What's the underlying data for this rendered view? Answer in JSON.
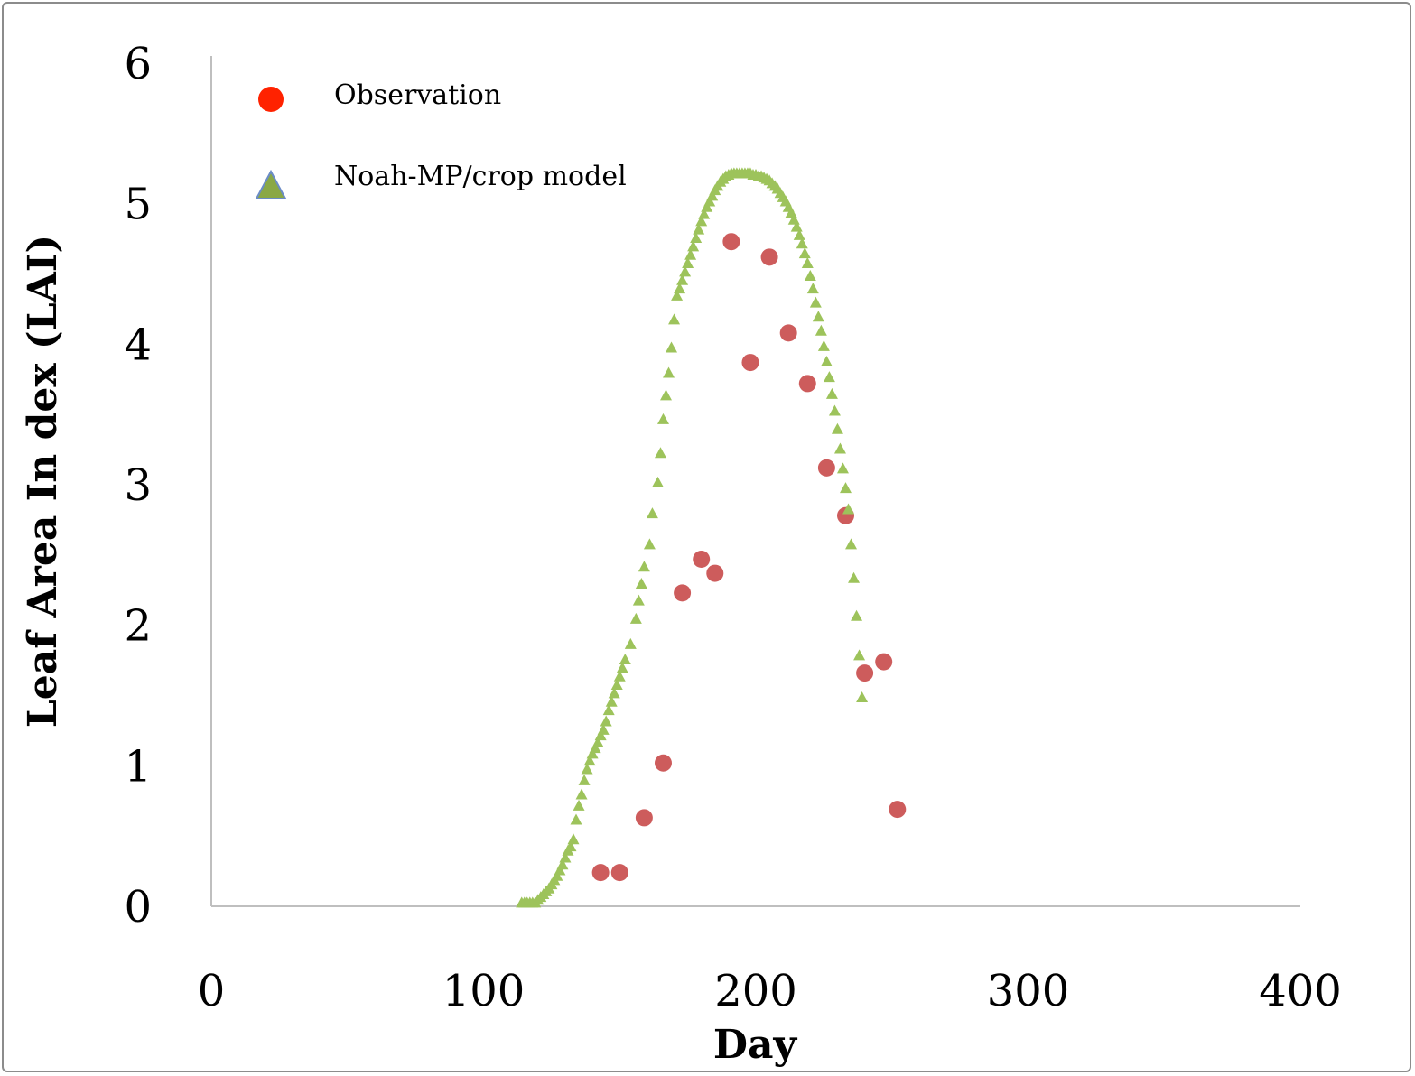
{
  "chart_data": {
    "type": "scatter",
    "xlabel": "Day",
    "ylabel": "Leaf Area In dex (LAI)",
    "xlim": [
      0,
      400
    ],
    "ylim": [
      0,
      6
    ],
    "xticks": [
      0,
      100,
      200,
      300,
      400
    ],
    "yticks": [
      0,
      1,
      2,
      3,
      4,
      5,
      6
    ],
    "grid": false,
    "legend": "top-left",
    "series": [
      {
        "name": "Observation",
        "marker": "circle",
        "color": "#cd5c5c",
        "legend_color": "#ff2200",
        "points": [
          [
            143,
            0.24
          ],
          [
            150,
            0.24
          ],
          [
            159,
            0.63
          ],
          [
            166,
            1.02
          ],
          [
            173,
            2.23
          ],
          [
            180,
            2.47
          ],
          [
            185,
            2.37
          ],
          [
            191,
            4.73
          ],
          [
            198,
            3.87
          ],
          [
            205,
            4.62
          ],
          [
            212,
            4.08
          ],
          [
            219,
            3.72
          ],
          [
            226,
            3.12
          ],
          [
            233,
            2.78
          ],
          [
            240,
            1.66
          ],
          [
            247,
            1.74
          ],
          [
            252,
            0.69
          ]
        ]
      },
      {
        "name": "Noah-MP/crop model",
        "marker": "triangle",
        "color": "#9dc35b",
        "legend_color": "#8aa846",
        "points": [
          [
            114,
            0.03
          ],
          [
            115,
            0.03
          ],
          [
            116,
            0.03
          ],
          [
            117,
            0.03
          ],
          [
            118,
            0.03
          ],
          [
            119,
            0.03
          ],
          [
            120,
            0.05
          ],
          [
            121,
            0.07
          ],
          [
            122,
            0.09
          ],
          [
            123,
            0.11
          ],
          [
            124,
            0.13
          ],
          [
            125,
            0.16
          ],
          [
            126,
            0.19
          ],
          [
            127,
            0.22
          ],
          [
            128,
            0.26
          ],
          [
            129,
            0.3
          ],
          [
            130,
            0.35
          ],
          [
            131,
            0.4
          ],
          [
            132,
            0.43
          ],
          [
            133,
            0.48
          ],
          [
            134,
            0.62
          ],
          [
            135,
            0.72
          ],
          [
            136,
            0.8
          ],
          [
            137,
            0.9
          ],
          [
            138,
            0.98
          ],
          [
            139,
            1.04
          ],
          [
            140,
            1.09
          ],
          [
            141,
            1.13
          ],
          [
            142,
            1.17
          ],
          [
            143,
            1.22
          ],
          [
            144,
            1.26
          ],
          [
            145,
            1.32
          ],
          [
            146,
            1.4
          ],
          [
            147,
            1.46
          ],
          [
            148,
            1.52
          ],
          [
            149,
            1.58
          ],
          [
            150,
            1.64
          ],
          [
            151,
            1.7
          ],
          [
            152,
            1.76
          ],
          [
            154,
            1.87
          ],
          [
            156,
            2.05
          ],
          [
            157,
            2.18
          ],
          [
            158,
            2.3
          ],
          [
            159,
            2.42
          ],
          [
            161,
            2.58
          ],
          [
            162,
            2.8
          ],
          [
            164,
            3.02
          ],
          [
            165,
            3.23
          ],
          [
            166,
            3.47
          ],
          [
            167,
            3.64
          ],
          [
            168,
            3.8
          ],
          [
            169,
            3.98
          ],
          [
            170,
            4.18
          ],
          [
            171,
            4.35
          ],
          [
            172,
            4.4
          ],
          [
            173,
            4.46
          ],
          [
            174,
            4.52
          ],
          [
            175,
            4.58
          ],
          [
            176,
            4.64
          ],
          [
            177,
            4.7
          ],
          [
            178,
            4.76
          ],
          [
            179,
            4.82
          ],
          [
            180,
            4.88
          ],
          [
            181,
            4.93
          ],
          [
            182,
            4.98
          ],
          [
            183,
            5.02
          ],
          [
            184,
            5.06
          ],
          [
            185,
            5.1
          ],
          [
            186,
            5.13
          ],
          [
            187,
            5.16
          ],
          [
            188,
            5.18
          ],
          [
            189,
            5.2
          ],
          [
            190,
            5.21
          ],
          [
            191,
            5.22
          ],
          [
            192,
            5.22
          ],
          [
            193,
            5.22
          ],
          [
            194,
            5.22
          ],
          [
            195,
            5.22
          ],
          [
            196,
            5.22
          ],
          [
            197,
            5.22
          ],
          [
            198,
            5.22
          ],
          [
            199,
            5.21
          ],
          [
            200,
            5.21
          ],
          [
            201,
            5.2
          ],
          [
            202,
            5.2
          ],
          [
            203,
            5.19
          ],
          [
            204,
            5.18
          ],
          [
            205,
            5.17
          ],
          [
            206,
            5.15
          ],
          [
            207,
            5.13
          ],
          [
            208,
            5.11
          ],
          [
            209,
            5.08
          ],
          [
            210,
            5.05
          ],
          [
            211,
            5.02
          ],
          [
            212,
            4.98
          ],
          [
            213,
            4.94
          ],
          [
            214,
            4.89
          ],
          [
            215,
            4.84
          ],
          [
            216,
            4.78
          ],
          [
            217,
            4.72
          ],
          [
            218,
            4.65
          ],
          [
            219,
            4.58
          ],
          [
            220,
            4.49
          ],
          [
            221,
            4.4
          ],
          [
            222,
            4.3
          ],
          [
            223,
            4.2
          ],
          [
            224,
            4.1
          ],
          [
            225,
            3.99
          ],
          [
            226,
            3.88
          ],
          [
            227,
            3.77
          ],
          [
            228,
            3.65
          ],
          [
            229,
            3.53
          ],
          [
            230,
            3.4
          ],
          [
            231,
            3.26
          ],
          [
            232,
            3.12
          ],
          [
            233,
            2.98
          ],
          [
            234,
            2.83
          ],
          [
            235,
            2.58
          ],
          [
            236,
            2.34
          ],
          [
            237,
            2.07
          ],
          [
            238,
            1.79
          ],
          [
            239,
            1.49
          ]
        ]
      }
    ]
  }
}
